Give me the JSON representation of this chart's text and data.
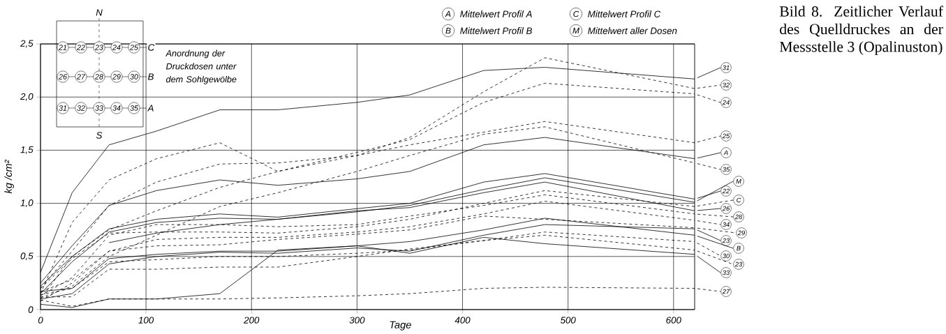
{
  "chart_data": {
    "type": "line",
    "title": "Bild 8. Zeitlicher Verlauf des Quelldruckes an der Messstelle 3 (Opalinuston)",
    "xlabel": "Tage",
    "ylabel": "kg /cm²",
    "x": [
      0,
      30,
      65,
      110,
      170,
      225,
      300,
      350,
      420,
      478,
      620
    ],
    "xlim": [
      0,
      620
    ],
    "ylim": [
      0,
      2.5
    ],
    "xticks": [
      0,
      100,
      200,
      300,
      400,
      500,
      600
    ],
    "yticks": [
      {
        "value": 0,
        "label": "0"
      },
      {
        "value": 0.5,
        "label": "0,5"
      },
      {
        "value": 1.0,
        "label": "1,0"
      },
      {
        "value": 1.5,
        "label": "1,5"
      },
      {
        "value": 2.0,
        "label": "2,0"
      },
      {
        "value": 2.5,
        "label": "2,5"
      }
    ],
    "grid": true,
    "legend": "right",
    "series": [
      {
        "name": "31",
        "color": "#000000",
        "line_style": "solid",
        "values": [
          0.35,
          1.1,
          1.55,
          1.68,
          1.88,
          1.88,
          1.95,
          2.02,
          2.25,
          2.28,
          2.17
        ]
      },
      {
        "name": "32",
        "color": "#000000",
        "line_style": "dashed",
        "values": [
          0.15,
          0.82,
          1.22,
          1.42,
          1.57,
          1.3,
          1.45,
          1.62,
          2.05,
          2.37,
          2.08
        ]
      },
      {
        "name": "24",
        "color": "#000000",
        "line_style": "dashed",
        "values": [
          0.1,
          0.5,
          0.75,
          0.93,
          1.15,
          1.3,
          1.48,
          1.6,
          1.95,
          2.13,
          2.03
        ]
      },
      {
        "name": "25",
        "color": "#000000",
        "line_style": "dashed",
        "values": [
          0.2,
          0.55,
          0.98,
          1.2,
          1.37,
          1.38,
          1.45,
          1.55,
          1.67,
          1.77,
          1.57
        ]
      },
      {
        "name": "A",
        "color": "#000000",
        "line_style": "solid",
        "values": [
          0.25,
          0.6,
          0.98,
          1.12,
          1.22,
          1.17,
          1.23,
          1.3,
          1.55,
          1.62,
          1.42
        ]
      },
      {
        "name": "35",
        "color": "#000000",
        "line_style": "dashed",
        "values": [
          0.11,
          0.22,
          0.5,
          0.7,
          0.97,
          1.1,
          1.3,
          1.45,
          1.65,
          1.72,
          1.38
        ]
      },
      {
        "name": "M",
        "color": "#000000",
        "line_style": "solid",
        "values": [
          null,
          null,
          0.63,
          0.72,
          0.8,
          0.85,
          0.92,
          0.98,
          1.13,
          1.24,
          1.01
        ]
      },
      {
        "name": "22",
        "color": "#000000",
        "line_style": "solid",
        "values": [
          0.22,
          0.5,
          0.76,
          0.85,
          0.9,
          0.87,
          0.95,
          1.0,
          1.2,
          1.28,
          1.04
        ]
      },
      {
        "name": "C",
        "color": "#000000",
        "line_style": "dashed",
        "values": [
          0.2,
          0.48,
          0.72,
          0.73,
          0.73,
          0.72,
          0.78,
          0.85,
          1.0,
          1.12,
          0.97
        ]
      },
      {
        "name": "26",
        "color": "#000000",
        "line_style": "solid",
        "values": [
          0.15,
          0.45,
          0.73,
          0.82,
          0.86,
          0.85,
          0.93,
          0.96,
          1.1,
          1.2,
          0.93
        ]
      },
      {
        "name": "28",
        "color": "#000000",
        "line_style": "dashed",
        "values": [
          0.13,
          0.3,
          0.7,
          0.8,
          0.8,
          0.78,
          0.8,
          0.88,
          0.98,
          1.08,
          0.9
        ]
      },
      {
        "name": "34",
        "color": "#000000",
        "line_style": "dashed",
        "values": [
          0.08,
          0.25,
          0.55,
          0.66,
          0.68,
          0.68,
          0.73,
          0.78,
          0.9,
          1.02,
          0.84
        ]
      },
      {
        "name": "29",
        "color": "#000000",
        "line_style": "dashed",
        "values": [
          0.17,
          0.28,
          0.55,
          0.6,
          0.61,
          0.66,
          0.71,
          0.75,
          0.88,
          0.85,
          0.77
        ]
      },
      {
        "name": "23",
        "color": "#000000",
        "line_style": "solid",
        "values": [
          0.1,
          0.15,
          0.43,
          0.5,
          0.54,
          0.53,
          0.58,
          0.55,
          0.7,
          0.8,
          0.76
        ]
      },
      {
        "name": "B",
        "color": "#000000",
        "line_style": "solid",
        "values": [
          0.17,
          0.2,
          0.48,
          0.52,
          0.55,
          0.55,
          0.6,
          0.64,
          0.75,
          0.86,
          0.7
        ]
      },
      {
        "name": "30",
        "color": "#000000",
        "line_style": "dashed",
        "values": [
          0.14,
          0.2,
          0.45,
          0.47,
          0.5,
          0.5,
          0.53,
          0.56,
          0.65,
          0.73,
          0.64
        ]
      },
      {
        "name": "23",
        "color": "#000000",
        "line_style": "dashed",
        "values": [
          0.12,
          0.12,
          0.38,
          0.38,
          0.4,
          0.4,
          0.5,
          0.57,
          0.65,
          0.7,
          0.56
        ]
      },
      {
        "name": "33",
        "color": "#000000",
        "line_style": "solid",
        "values": [
          0.05,
          0.02,
          0.1,
          0.1,
          0.15,
          0.56,
          0.6,
          0.53,
          0.68,
          0.62,
          0.52
        ]
      },
      {
        "name": "27",
        "color": "#000000",
        "line_style": "dashed",
        "values": [
          0.09,
          0.03,
          0.1,
          0.1,
          0.1,
          0.11,
          0.13,
          0.15,
          0.2,
          0.21,
          0.2
        ]
      }
    ],
    "annotations": [
      "Mittelwert Profil A",
      "Mittelwert Profil C",
      "Mittelwert Profil B",
      "Mittelwert aller Dosen",
      "Anordnung der Druckdosen unter dem Sohlgewölbe",
      "N",
      "S",
      "C",
      "B",
      "A",
      "21",
      "22",
      "23",
      "24",
      "25",
      "26",
      "27",
      "28",
      "29",
      "30",
      "31",
      "32",
      "33",
      "34",
      "35"
    ]
  }
}
